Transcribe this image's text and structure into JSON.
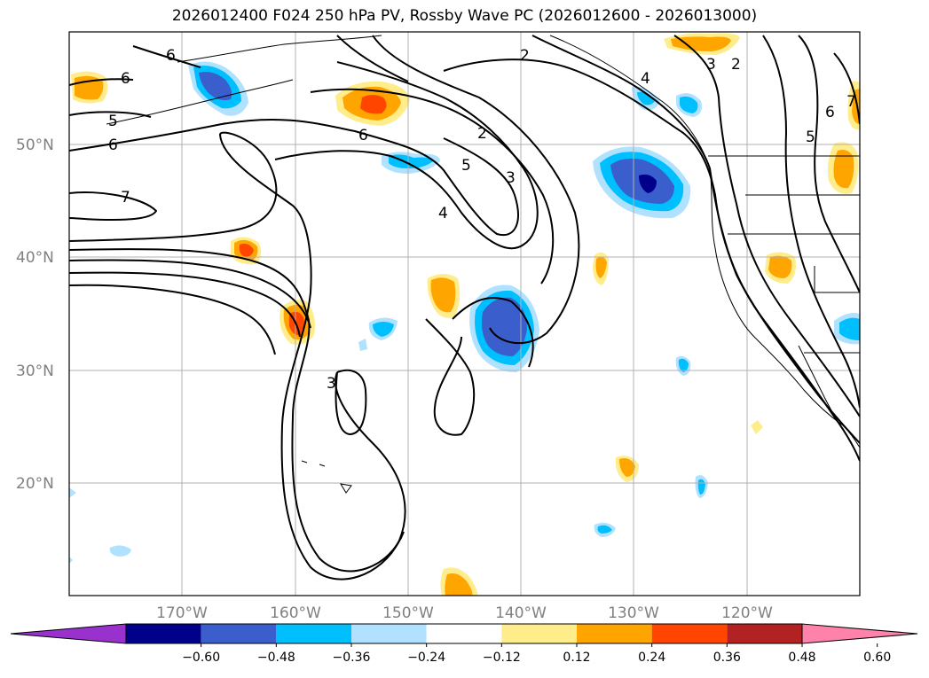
{
  "title": "2026012400 F024 250 hPa PV, Rossby Wave PC (2026012600 - 2026013000)",
  "lat_labels": [
    "50°N",
    "40°N",
    "30°N",
    "20°N"
  ],
  "lon_labels": [
    "170°W",
    "160°W",
    "150°W",
    "140°W",
    "130°W",
    "120°W"
  ],
  "contour_labels": [
    "6",
    "6",
    "5",
    "6",
    "6",
    "7",
    "2",
    "2",
    "5",
    "3",
    "4",
    "3",
    "3",
    "2",
    "4",
    "6",
    "7",
    "5"
  ],
  "colorbar": {
    "ticks": [
      "−0.60",
      "−0.48",
      "−0.36",
      "−0.24",
      "−0.12",
      "0.12",
      "0.24",
      "0.36",
      "0.48",
      "0.60"
    ],
    "colors": [
      "#9932cc",
      "#00008b",
      "#3a5fcd",
      "#00bfff",
      "#b0e2ff",
      "#ffffff",
      "#ffec8b",
      "#ffa500",
      "#ff4500",
      "#b22222",
      "#ff82ab"
    ]
  },
  "colors": {
    "neg_strong": "#00008b",
    "neg_mid": "#3a5fcd",
    "neg_light": "#00bfff",
    "neg_pale": "#b0e2ff",
    "pos_pale": "#ffec8b",
    "pos_mid": "#ffa500",
    "pos_strong": "#ff4500"
  }
}
